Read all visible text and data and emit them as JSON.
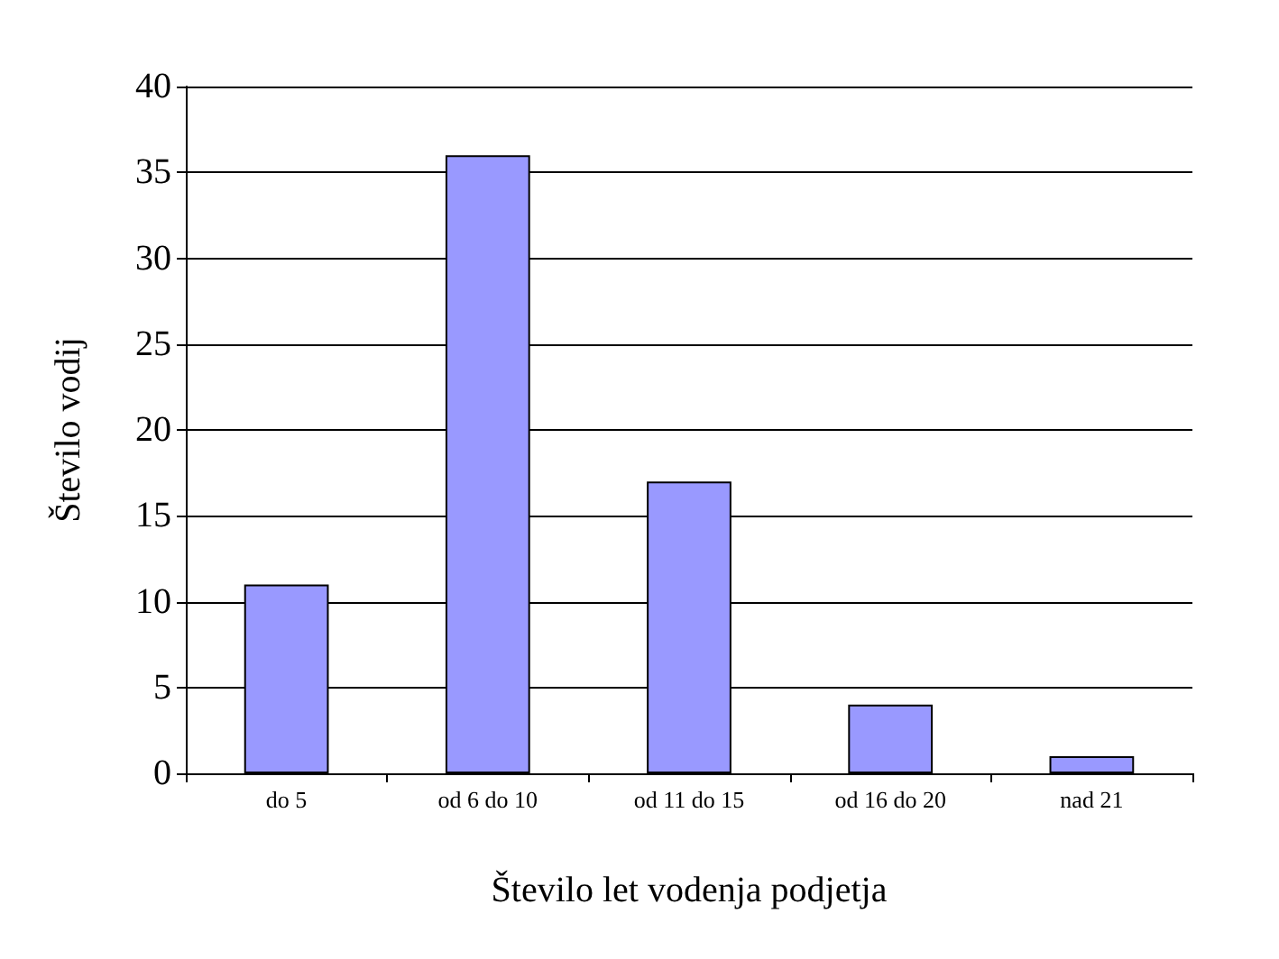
{
  "chart_data": {
    "type": "bar",
    "xlabel": "Število let vodenja podjetja",
    "ylabel": "Število vodij",
    "categories": [
      "do 5",
      "od 6 do 10",
      "od 11 do 15",
      "od 16 do 20",
      "nad 21"
    ],
    "values": [
      11,
      36,
      17,
      4,
      1
    ],
    "color": "#9999ff",
    "ylim": [
      0,
      40
    ],
    "yticks": [
      0,
      5,
      10,
      15,
      20,
      25,
      30,
      35,
      40
    ],
    "grid": "y"
  }
}
